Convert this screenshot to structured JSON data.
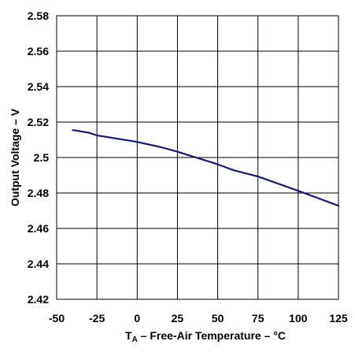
{
  "chart_data": {
    "type": "line",
    "title": "",
    "xlabel_main": "T",
    "xlabel_sub": "A",
    "xlabel_rest": " – Free-Air Temperature – °C",
    "ylabel": "Output Voltage – V",
    "xlim": [
      -50,
      125
    ],
    "ylim": [
      2.42,
      2.58
    ],
    "xticks": [
      -50,
      -25,
      0,
      25,
      50,
      75,
      100,
      125
    ],
    "xtick_labels": [
      "-50",
      "-25",
      "0",
      "25",
      "50",
      "75",
      "100",
      "125"
    ],
    "yticks": [
      2.42,
      2.44,
      2.46,
      2.48,
      2.5,
      2.52,
      2.54,
      2.56,
      2.58
    ],
    "ytick_labels": [
      "2.42",
      "2.44",
      "2.46",
      "2.48",
      "2.5",
      "2.52",
      "2.54",
      "2.56",
      "2.58"
    ],
    "grid": true,
    "legend": "none",
    "series": [
      {
        "color": "#1a1a6e",
        "x": [
          -40,
          -30,
          -25,
          0,
          15,
          25,
          40,
          50,
          60,
          75,
          90,
          100,
          125
        ],
        "y": [
          2.5155,
          2.514,
          2.5125,
          2.5088,
          2.5058,
          2.5033,
          2.499,
          2.4962,
          2.4928,
          2.4893,
          2.4845,
          2.4812,
          2.4728
        ]
      }
    ]
  }
}
